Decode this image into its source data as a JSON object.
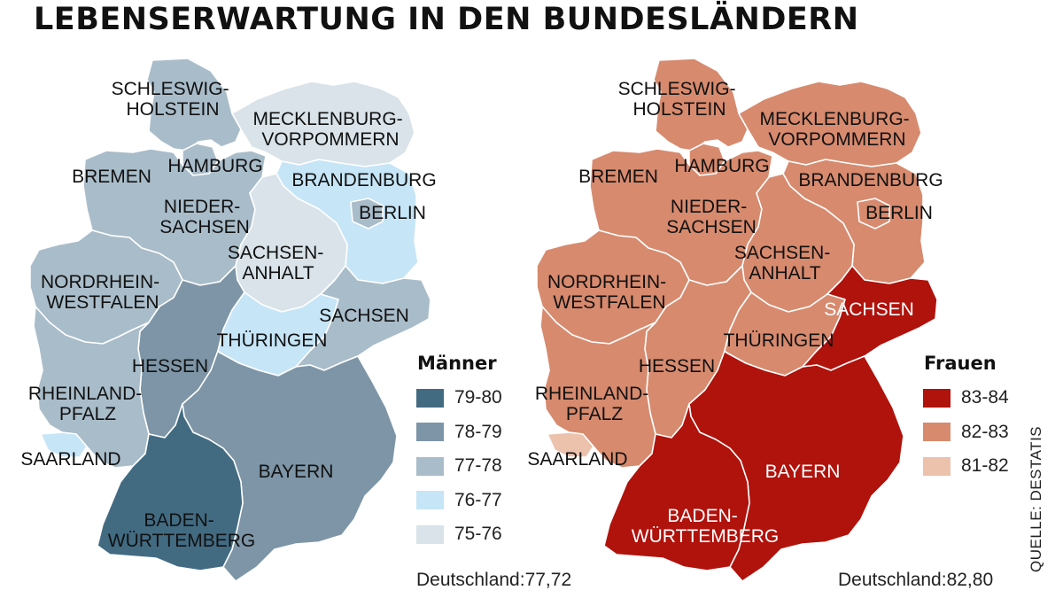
{
  "title": "LEBENSERWARTUNG IN DEN BUNDESLÄNDERN",
  "source": "QUELLE: DESTATIS",
  "maps": {
    "maenner": {
      "legend_title": "Männer",
      "average": "Deutschland:77,72",
      "classes": [
        {
          "label": "79-80",
          "color": "#426b82"
        },
        {
          "label": "78-79",
          "color": "#7d95a6"
        },
        {
          "label": "77-78",
          "color": "#a9bcc9"
        },
        {
          "label": "76-77",
          "color": "#c6e5f7"
        },
        {
          "label": "75-76",
          "color": "#d9e3e9"
        }
      ],
      "states": {
        "schleswig_holstein": {
          "name": "SCHLESWIG-\nHOLSTEIN",
          "class": "77-78"
        },
        "mecklenburg_vorpommern": {
          "name": "MECKLENBURG-\nVORPOMMERN",
          "class": "75-76"
        },
        "hamburg": {
          "name": "HAMBURG",
          "class": "77-78"
        },
        "bremen": {
          "name": "BREMEN",
          "class": "76-77"
        },
        "niedersachsen": {
          "name": "NIEDER-\nSACHSEN",
          "class": "77-78"
        },
        "brandenburg": {
          "name": "BRANDENBURG",
          "class": "76-77"
        },
        "berlin": {
          "name": "BERLIN",
          "class": "77-78"
        },
        "sachsen_anhalt": {
          "name": "SACHSEN-\nANHALT",
          "class": "75-76"
        },
        "nordrhein_westfalen": {
          "name": "NORDRHEIN-\nWESTFALEN",
          "class": "77-78"
        },
        "sachsen": {
          "name": "SACHSEN",
          "class": "77-78"
        },
        "thueringen": {
          "name": "THÜRINGEN",
          "class": "76-77"
        },
        "hessen": {
          "name": "HESSEN",
          "class": "78-79"
        },
        "rheinland_pfalz": {
          "name": "RHEINLAND-\nPFALZ",
          "class": "77-78"
        },
        "saarland": {
          "name": "SAARLAND",
          "class": "76-77"
        },
        "bayern": {
          "name": "BAYERN",
          "class": "78-79"
        },
        "baden_wuerttemberg": {
          "name": "BADEN-\nWÜRTTEMBERG",
          "class": "79-80"
        }
      }
    },
    "frauen": {
      "legend_title": "Frauen",
      "average": "Deutschland:82,80",
      "classes": [
        {
          "label": "83-84",
          "color": "#b0120c"
        },
        {
          "label": "82-83",
          "color": "#d78a6e"
        },
        {
          "label": "81-82",
          "color": "#ecc2ad"
        }
      ],
      "states": {
        "schleswig_holstein": {
          "name": "SCHLESWIG-\nHOLSTEIN",
          "class": "82-83"
        },
        "mecklenburg_vorpommern": {
          "name": "MECKLENBURG-\nVORPOMMERN",
          "class": "82-83"
        },
        "hamburg": {
          "name": "HAMBURG",
          "class": "82-83"
        },
        "bremen": {
          "name": "BREMEN",
          "class": "82-83"
        },
        "niedersachsen": {
          "name": "NIEDER-\nSACHSEN",
          "class": "82-83"
        },
        "brandenburg": {
          "name": "BRANDENBURG",
          "class": "82-83"
        },
        "berlin": {
          "name": "BERLIN",
          "class": "82-83"
        },
        "sachsen_anhalt": {
          "name": "SACHSEN-\nANHALT",
          "class": "82-83"
        },
        "nordrhein_westfalen": {
          "name": "NORDRHEIN-\nWESTFALEN",
          "class": "82-83"
        },
        "sachsen": {
          "name": "SACHSEN",
          "class": "83-84"
        },
        "thueringen": {
          "name": "THÜRINGEN",
          "class": "82-83"
        },
        "hessen": {
          "name": "HESSEN",
          "class": "82-83"
        },
        "rheinland_pfalz": {
          "name": "RHEINLAND-\nPFALZ",
          "class": "82-83"
        },
        "saarland": {
          "name": "SAARLAND",
          "class": "81-82"
        },
        "bayern": {
          "name": "BAYERN",
          "class": "83-84"
        },
        "baden_wuerttemberg": {
          "name": "BADEN-\nWÜRTTEMBERG",
          "class": "83-84"
        }
      }
    }
  }
}
